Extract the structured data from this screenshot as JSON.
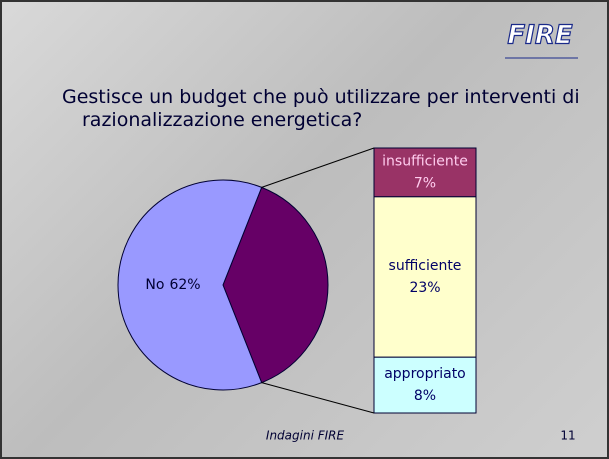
{
  "logo": "FIRE",
  "footer": {
    "text": "Indagini FIRE",
    "page": 11
  },
  "chart_data": [
    {
      "type": "pie",
      "title": "Gestisce un budget che può utilizzare per interventi di razionalizzazione energetica?",
      "categories": [
        "No",
        null
      ],
      "values": [
        62,
        38
      ],
      "value_labels": [
        "62%",
        null
      ],
      "colors": [
        "#9999ff",
        "#660066"
      ]
    },
    {
      "type": "bar",
      "stacked": true,
      "categories": [
        "insufficiente",
        "sufficiente",
        "appropriato"
      ],
      "values": [
        7,
        23,
        8
      ],
      "value_labels": [
        "7%",
        "23%",
        "8%"
      ],
      "colors": [
        "#993366",
        "#ffffcc",
        "#ccffff"
      ],
      "text_colors": [
        "#ffccee",
        "#000066",
        "#000066"
      ]
    }
  ]
}
